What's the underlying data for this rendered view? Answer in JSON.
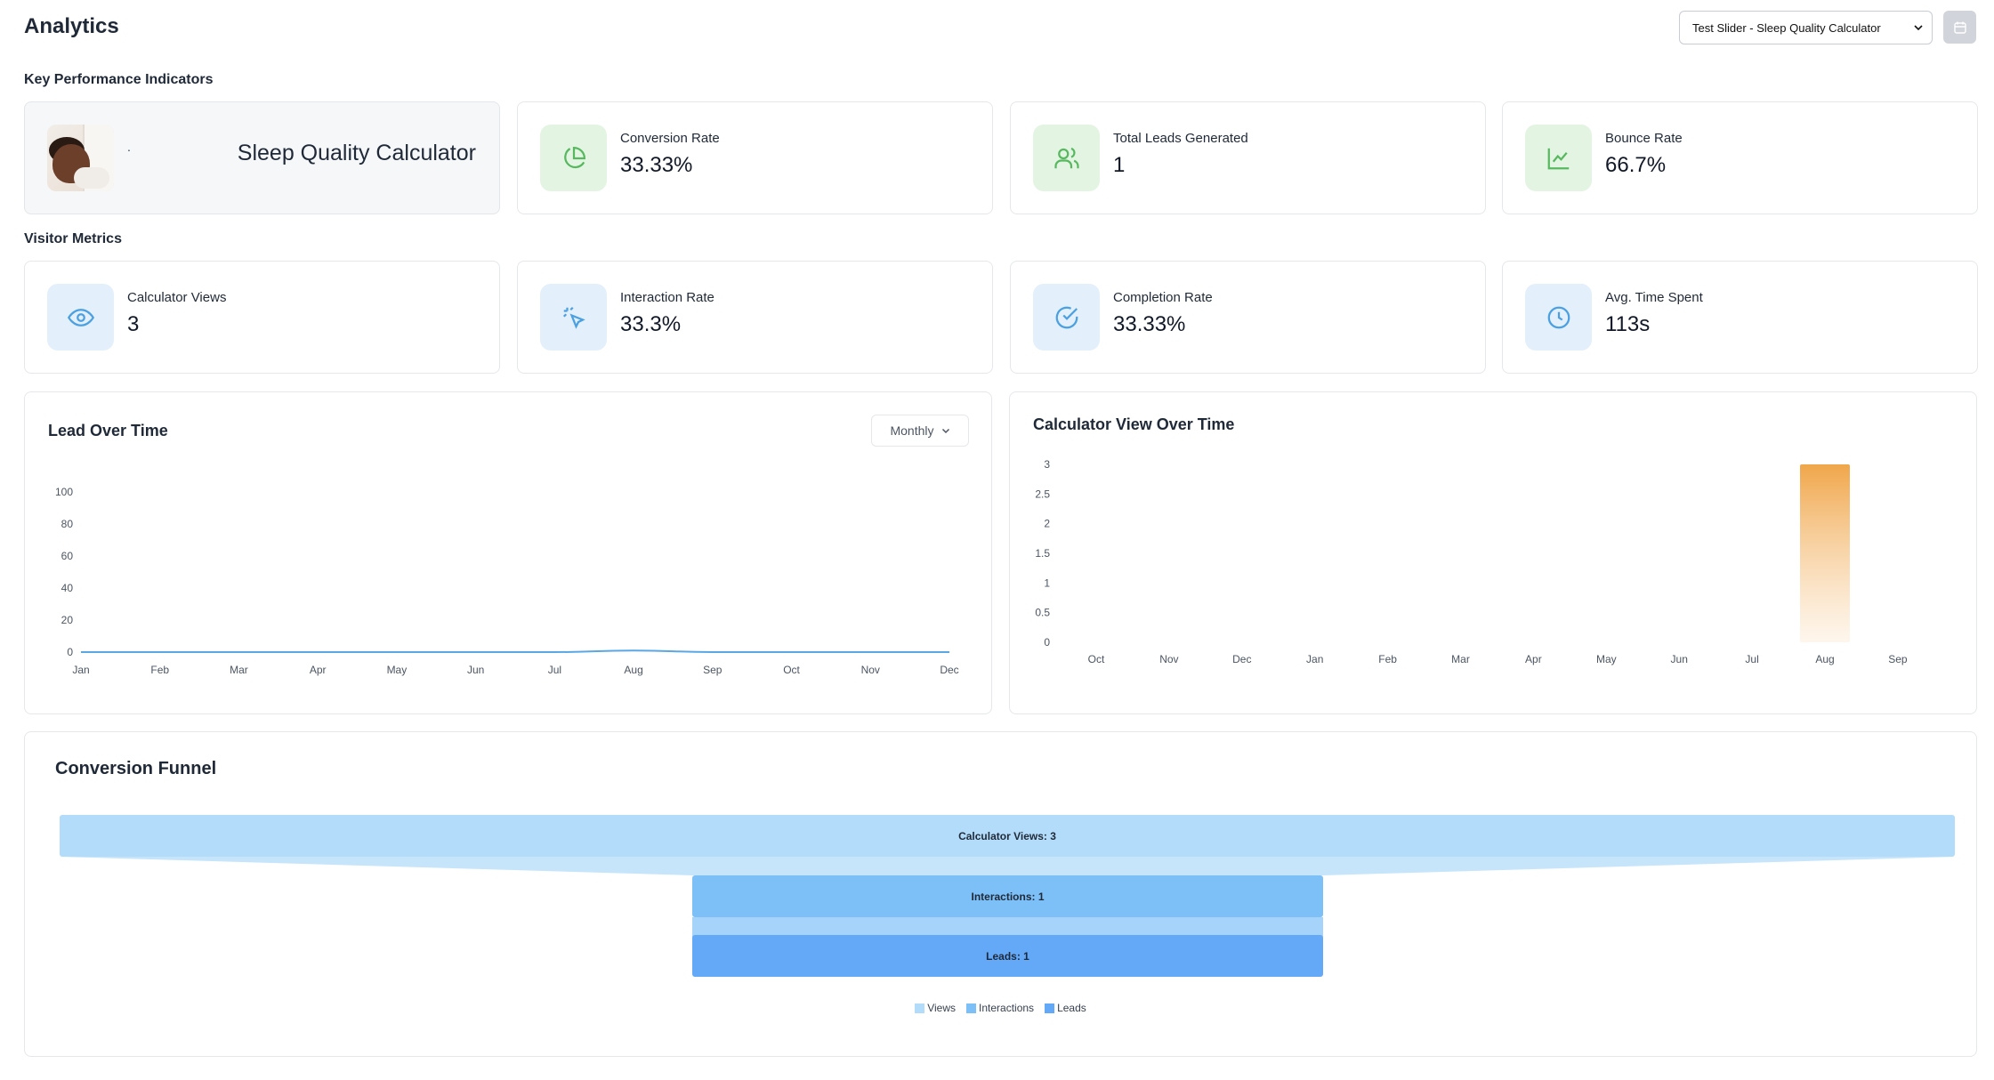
{
  "header": {
    "title": "Analytics",
    "calculator_select": "Test Slider - Sleep Quality Calculator",
    "calendar_icon": "calendar-icon"
  },
  "kpi": {
    "section_title": "Key Performance Indicators",
    "product": {
      "marker": ".",
      "name": "Sleep Quality Calculator"
    },
    "cards": [
      {
        "label": "Conversion Rate",
        "value": "33.33%",
        "icon": "pie-chart-icon"
      },
      {
        "label": "Total Leads Generated",
        "value": "1",
        "icon": "users-icon"
      },
      {
        "label": "Bounce Rate",
        "value": "66.7%",
        "icon": "line-chart-icon"
      }
    ]
  },
  "visitor": {
    "section_title": "Visitor Metrics",
    "cards": [
      {
        "label": "Calculator Views",
        "value": "3",
        "icon": "eye-icon"
      },
      {
        "label": "Interaction Rate",
        "value": "33.3%",
        "icon": "cursor-click-icon"
      },
      {
        "label": "Completion Rate",
        "value": "33.33%",
        "icon": "check-circle-icon"
      },
      {
        "label": "Avg. Time Spent",
        "value": "113s",
        "icon": "clock-icon"
      }
    ]
  },
  "lead_chart": {
    "period_label": "Monthly"
  },
  "colors": {
    "green_icon": "#58b860",
    "blue_icon": "#4aa0e0",
    "line": "#5aa7e6",
    "bar_top": "#f0a64a",
    "views": "#b3dcfa",
    "interactions": "#7dbff7",
    "leads": "#64a8f8"
  },
  "chart_data": [
    {
      "type": "line",
      "title": "Lead Over Time",
      "categories": [
        "Jan",
        "Feb",
        "Mar",
        "Apr",
        "May",
        "Jun",
        "Jul",
        "Aug",
        "Sep",
        "Oct",
        "Nov",
        "Dec"
      ],
      "values": [
        0,
        0,
        0,
        0,
        0,
        0,
        0,
        1,
        0,
        0,
        0,
        0
      ],
      "ylim": [
        0,
        100
      ],
      "yticks": [
        "0",
        "20",
        "40",
        "60",
        "80",
        "100"
      ],
      "grid": false
    },
    {
      "type": "bar",
      "title": "Calculator View Over Time",
      "categories": [
        "Oct",
        "Nov",
        "Dec",
        "Jan",
        "Feb",
        "Mar",
        "Apr",
        "May",
        "Jun",
        "Jul",
        "Aug",
        "Sep"
      ],
      "values": [
        0,
        0,
        0,
        0,
        0,
        0,
        0,
        0,
        0,
        0,
        3,
        0
      ],
      "ylim": [
        0,
        3
      ],
      "yticks": [
        "0",
        "0.5",
        "1",
        "1.5",
        "2",
        "2.5",
        "3"
      ],
      "grid": false
    },
    {
      "type": "bar",
      "title": "Conversion Funnel",
      "categories": [
        "Views",
        "Interactions",
        "Leads"
      ],
      "values": [
        3,
        1,
        1
      ],
      "labels": [
        "Calculator Views: 3",
        "Interactions: 1",
        "Leads: 1"
      ],
      "legend": [
        "Views",
        "Interactions",
        "Leads"
      ],
      "legend_position": "bottom"
    }
  ]
}
